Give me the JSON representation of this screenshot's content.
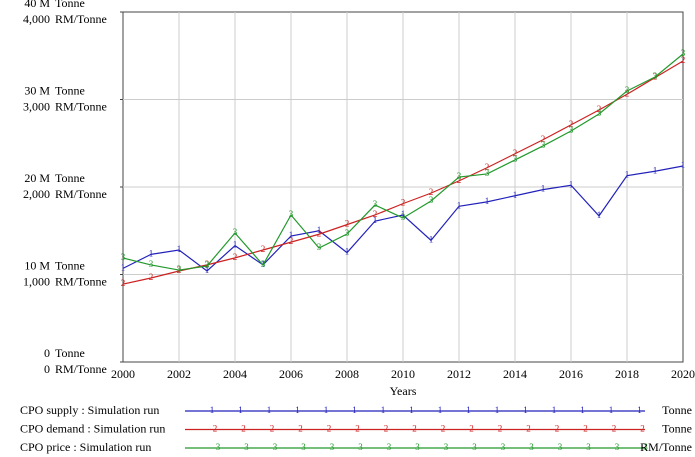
{
  "chart_data": {
    "type": "line",
    "x_label": "Years",
    "y_unit": "Tonne",
    "y2_unit": "RM/Tonne",
    "x": [
      2000,
      2001,
      2002,
      2003,
      2004,
      2005,
      2006,
      2007,
      2008,
      2009,
      2010,
      2011,
      2012,
      2013,
      2014,
      2015,
      2016,
      2017,
      2018,
      2019,
      2020
    ],
    "xlim": [
      2000,
      2020
    ],
    "xticks": [
      2000,
      2002,
      2004,
      2006,
      2008,
      2010,
      2012,
      2014,
      2016,
      2018,
      2020
    ],
    "ylim": [
      0,
      40000000
    ],
    "yticks": [
      0,
      {
        "value": 10000000,
        "label": "10 M"
      },
      {
        "value": 20000000,
        "label": "20 M"
      },
      {
        "value": 30000000,
        "label": "30 M"
      },
      {
        "value": 40000000,
        "label": "40 M"
      }
    ],
    "y2lim": [
      0,
      4000
    ],
    "y2ticks": [
      0,
      {
        "value": 1000,
        "label": "1,000"
      },
      {
        "value": 2000,
        "label": "2,000"
      },
      {
        "value": 3000,
        "label": "3,000"
      },
      {
        "value": 4000,
        "label": "4,000"
      }
    ],
    "grid": true,
    "series": [
      {
        "name": "CPO supply : Simulation run",
        "marker": "1",
        "unit": "Tonne",
        "color": "#2222bb",
        "values": [
          10700000,
          12300000,
          12800000,
          10400000,
          13300000,
          11100000,
          14400000,
          15000000,
          12500000,
          16100000,
          16800000,
          13900000,
          17800000,
          18300000,
          19000000,
          19700000,
          20200000,
          16700000,
          21300000,
          21800000,
          22400000
        ]
      },
      {
        "name": "CPO demand : Simulation run",
        "marker": "2",
        "unit": "Tonne",
        "color": "#cc2222",
        "values": [
          8900000,
          9600000,
          10400000,
          11100000,
          11900000,
          12800000,
          13700000,
          14600000,
          15700000,
          16800000,
          18100000,
          19300000,
          20700000,
          22200000,
          23800000,
          25400000,
          27100000,
          28800000,
          30600000,
          32500000,
          34400000
        ]
      },
      {
        "name": "CPO price : Simulation run",
        "marker": "3",
        "unit": "RM/Tonne",
        "color": "#22992b",
        "axis": "y2",
        "values": [
          1189,
          1109,
          1051,
          1097,
          1474,
          1109,
          1680,
          1303,
          1463,
          1794,
          1646,
          1840,
          2114,
          2149,
          2309,
          2469,
          2640,
          2834,
          3097,
          3257,
          3520
        ]
      }
    ]
  }
}
